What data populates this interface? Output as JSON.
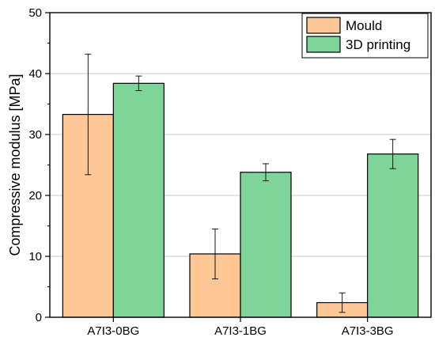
{
  "chart_data": {
    "type": "bar",
    "title": "",
    "xlabel": "",
    "ylabel": "Compressive modulus [MPa]",
    "ylim": [
      0,
      50
    ],
    "y_ticks": [
      0,
      10,
      20,
      30,
      40,
      50
    ],
    "grid": "horizontal",
    "legend_position": "top-right",
    "categories": [
      "A7I3-0BG",
      "A7I3-1BG",
      "A7I3-3BG"
    ],
    "series": [
      {
        "name": "Mould",
        "color": "#FDC896",
        "values": [
          33.3,
          10.4,
          2.4
        ],
        "errors": [
          9.9,
          4.1,
          1.6
        ]
      },
      {
        "name": "3D printing",
        "color": "#7FD49A",
        "values": [
          38.4,
          23.8,
          26.8
        ],
        "errors": [
          1.2,
          1.4,
          2.4
        ]
      }
    ]
  }
}
